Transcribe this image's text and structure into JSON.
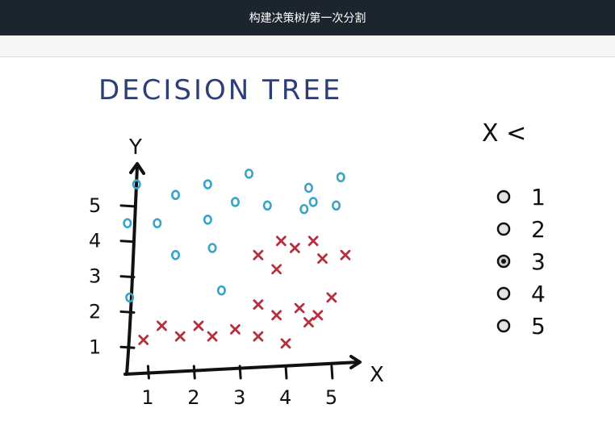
{
  "window": {
    "title": "构建决策树/第一次分割"
  },
  "slide": {
    "title": "DECISION TREE",
    "question_label": "X <",
    "options": [
      "1",
      "2",
      "3",
      "4",
      "5"
    ],
    "selected_option": "3"
  },
  "chart_data": {
    "type": "scatter",
    "title": "",
    "xlabel": "X",
    "ylabel": "Y",
    "xticks": [
      "1",
      "2",
      "3",
      "4",
      "5"
    ],
    "yticks": [
      "1",
      "2",
      "3",
      "4",
      "5"
    ],
    "xlim": [
      0.5,
      5.6
    ],
    "ylim": [
      0.3,
      6.0
    ],
    "grid": false,
    "series": [
      {
        "marker": "o",
        "color": "#3ba3c9",
        "points": [
          [
            0.75,
            5.6
          ],
          [
            1.6,
            5.3
          ],
          [
            2.3,
            5.6
          ],
          [
            3.2,
            5.9
          ],
          [
            4.5,
            5.5
          ],
          [
            5.2,
            5.8
          ],
          [
            2.9,
            5.1
          ],
          [
            3.6,
            5.0
          ],
          [
            4.4,
            4.9
          ],
          [
            4.6,
            5.1
          ],
          [
            5.1,
            5.0
          ],
          [
            0.55,
            4.5
          ],
          [
            1.2,
            4.5
          ],
          [
            2.3,
            4.6
          ],
          [
            1.6,
            3.6
          ],
          [
            2.4,
            3.8
          ],
          [
            0.6,
            2.4
          ],
          [
            2.6,
            2.6
          ]
        ]
      },
      {
        "marker": "x",
        "color": "#b5303f",
        "points": [
          [
            3.4,
            3.6
          ],
          [
            3.9,
            4.0
          ],
          [
            4.2,
            3.8
          ],
          [
            4.6,
            4.0
          ],
          [
            4.8,
            3.5
          ],
          [
            5.3,
            3.6
          ],
          [
            3.8,
            3.2
          ],
          [
            3.4,
            2.2
          ],
          [
            3.8,
            1.9
          ],
          [
            4.3,
            2.1
          ],
          [
            4.7,
            1.9
          ],
          [
            5.0,
            2.4
          ],
          [
            0.9,
            1.2
          ],
          [
            1.3,
            1.6
          ],
          [
            1.7,
            1.3
          ],
          [
            2.1,
            1.6
          ],
          [
            2.4,
            1.3
          ],
          [
            2.9,
            1.5
          ],
          [
            3.4,
            1.3
          ],
          [
            4.0,
            1.1
          ],
          [
            4.5,
            1.7
          ]
        ]
      }
    ]
  }
}
